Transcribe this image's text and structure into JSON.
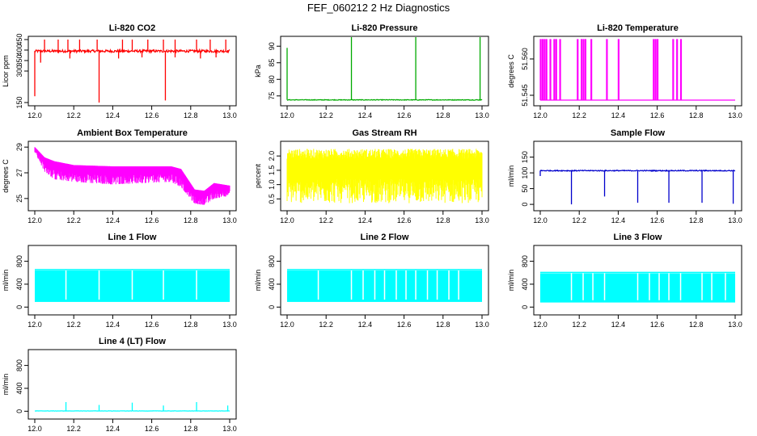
{
  "page_title": "FEF_060212  2 Hz Diagnostics",
  "chart_data": [
    {
      "type": "line",
      "title": "Li-820 CO2",
      "xlabel": "",
      "ylabel": "Licor ppm",
      "color": "#ff0000",
      "xlim": [
        12.0,
        13.0
      ],
      "ylim": [
        150,
        450
      ],
      "x_ticks": [
        "12.0",
        "12.2",
        "12.4",
        "12.6",
        "12.8",
        "13.0"
      ],
      "y_ticks": [
        150,
        300,
        350,
        400,
        450
      ],
      "style": "noisy-line-with-spikes",
      "baseline": 395,
      "noise": 6,
      "downspikes": [
        [
          12.0,
          180
        ],
        [
          12.33,
          150
        ],
        [
          12.67,
          160
        ],
        [
          12.03,
          340
        ],
        [
          12.18,
          360
        ],
        [
          12.43,
          360
        ],
        [
          12.55,
          365
        ],
        [
          12.72,
          365
        ],
        [
          12.85,
          360
        ],
        [
          12.93,
          365
        ]
      ],
      "upspikes": [
        [
          12.05,
          450
        ],
        [
          12.12,
          450
        ],
        [
          12.17,
          450
        ],
        [
          12.23,
          450
        ],
        [
          12.32,
          450
        ],
        [
          12.45,
          450
        ],
        [
          12.5,
          450
        ],
        [
          12.58,
          450
        ],
        [
          12.66,
          450
        ],
        [
          12.72,
          450
        ],
        [
          12.83,
          450
        ],
        [
          12.9,
          450
        ],
        [
          12.98,
          450
        ]
      ]
    },
    {
      "type": "line",
      "title": "Li-820 Pressure",
      "xlabel": "",
      "ylabel": "kPa",
      "color": "#00aa00",
      "xlim": [
        12.0,
        13.0
      ],
      "ylim": [
        73.0,
        92.0
      ],
      "x_ticks": [
        "12.0",
        "12.2",
        "12.4",
        "12.6",
        "12.8",
        "13.0"
      ],
      "y_ticks": [
        75,
        80,
        85,
        90
      ],
      "style": "noisy-line-with-spikes",
      "baseline": 73.8,
      "noise": 0.1,
      "downspikes": [],
      "upspikes": [
        [
          12.0,
          89.5
        ],
        [
          12.33,
          93.0
        ],
        [
          12.66,
          93.0
        ],
        [
          12.99,
          93.0
        ]
      ]
    },
    {
      "type": "line",
      "title": "Li-820 Temperature",
      "xlabel": "",
      "ylabel": "degrees C",
      "color": "#ff00ff",
      "xlim": [
        12.0,
        13.0
      ],
      "ylim": [
        51.542,
        51.568
      ],
      "x_ticks": [
        "12.0",
        "12.2",
        "12.4",
        "12.6",
        "12.8",
        "13.0"
      ],
      "y_ticks": [
        "51.545",
        "51.560"
      ],
      "style": "step-bars",
      "baseline": 51.543,
      "high": 51.568,
      "pulses": [
        12.0,
        12.01,
        12.02,
        12.03,
        12.05,
        12.07,
        12.08,
        12.1,
        12.19,
        12.21,
        12.22,
        12.23,
        12.26,
        12.34,
        12.4,
        12.58,
        12.59,
        12.6,
        12.68,
        12.7,
        12.72
      ]
    },
    {
      "type": "line",
      "title": "Ambient Box Temperature",
      "xlabel": "",
      "ylabel": "degrees C",
      "color": "#ff00ff",
      "xlim": [
        12.0,
        13.0
      ],
      "ylim": [
        24.3,
        29.2
      ],
      "x_ticks": [
        "12.0",
        "12.2",
        "12.4",
        "12.6",
        "12.8",
        "13.0"
      ],
      "y_ticks": [
        25,
        27,
        29
      ],
      "style": "noisy-band",
      "upper": [
        [
          12.0,
          29.0
        ],
        [
          12.05,
          28.2
        ],
        [
          12.1,
          27.9
        ],
        [
          12.2,
          27.6
        ],
        [
          12.4,
          27.5
        ],
        [
          12.7,
          27.5
        ],
        [
          12.75,
          27.3
        ],
        [
          12.82,
          25.7
        ],
        [
          12.87,
          25.6
        ],
        [
          12.92,
          26.2
        ],
        [
          13.0,
          26.0
        ]
      ],
      "lower": [
        [
          12.0,
          28.6
        ],
        [
          12.05,
          27.1
        ],
        [
          12.1,
          26.5
        ],
        [
          12.2,
          26.3
        ],
        [
          12.4,
          26.1
        ],
        [
          12.7,
          26.3
        ],
        [
          12.75,
          25.9
        ],
        [
          12.82,
          24.6
        ],
        [
          12.87,
          24.5
        ],
        [
          12.92,
          25.0
        ],
        [
          13.0,
          25.2
        ]
      ],
      "dips": [
        12.13,
        12.25,
        12.38,
        12.5,
        12.58,
        12.78,
        12.88
      ]
    },
    {
      "type": "line",
      "title": "Gas Stream RH",
      "xlabel": "",
      "ylabel": "percent",
      "color": "#ffff00",
      "xlim": [
        12.0,
        13.0
      ],
      "ylim": [
        0.2,
        2.4
      ],
      "x_ticks": [
        "12.0",
        "12.2",
        "12.4",
        "12.6",
        "12.8",
        "13.0"
      ],
      "y_ticks": [
        "0.5",
        "1.0",
        "1.5",
        "2.0"
      ],
      "style": "dense-fill",
      "band_top": 2.25,
      "band_bottom": 0.35,
      "core_top": 1.9,
      "core_bottom": 1.2
    },
    {
      "type": "line",
      "title": "Sample Flow",
      "xlabel": "",
      "ylabel": "ml/min",
      "color": "#0000cc",
      "xlim": [
        12.0,
        13.0
      ],
      "ylim": [
        -10,
        190
      ],
      "x_ticks": [
        "12.0",
        "12.2",
        "12.4",
        "12.6",
        "12.8",
        "13.0"
      ],
      "y_ticks": [
        0,
        50,
        100,
        150
      ],
      "style": "noisy-line-with-spikes",
      "baseline": 107,
      "noise": 1.5,
      "downspikes": [
        [
          12.16,
          0
        ],
        [
          12.33,
          25
        ],
        [
          12.5,
          5
        ],
        [
          12.66,
          5
        ],
        [
          12.83,
          5
        ],
        [
          12.99,
          2
        ],
        [
          12.0,
          90
        ]
      ],
      "upspikes": []
    },
    {
      "type": "line",
      "title": "Line 1 Flow",
      "xlabel": "",
      "ylabel": "ml/min",
      "color": "#00ffff",
      "xlim": [
        12.0,
        13.0
      ],
      "ylim": [
        -80,
        1020
      ],
      "x_ticks": [
        "12.0",
        "12.2",
        "12.4",
        "12.6",
        "12.8",
        "13.0"
      ],
      "y_ticks": [
        0,
        400,
        800
      ],
      "style": "block",
      "top": 640,
      "bottom": 90,
      "gaps": [
        12.16,
        12.33,
        12.5,
        12.66,
        12.83
      ]
    },
    {
      "type": "line",
      "title": "Line 2 Flow",
      "xlabel": "",
      "ylabel": "ml/min",
      "color": "#00ffff",
      "xlim": [
        12.0,
        13.0
      ],
      "ylim": [
        -80,
        1020
      ],
      "x_ticks": [
        "12.0",
        "12.2",
        "12.4",
        "12.6",
        "12.8",
        "13.0"
      ],
      "y_ticks": [
        0,
        400,
        800
      ],
      "style": "block",
      "top": 640,
      "bottom": 90,
      "gaps": [
        12.16,
        12.33,
        12.39,
        12.45,
        12.5,
        12.56,
        12.61,
        12.66,
        12.72,
        12.77,
        12.83,
        12.88
      ]
    },
    {
      "type": "line",
      "title": "Line 3 Flow",
      "xlabel": "",
      "ylabel": "ml/min",
      "color": "#00ffff",
      "xlim": [
        12.0,
        13.0
      ],
      "ylim": [
        -80,
        1020
      ],
      "x_ticks": [
        "12.0",
        "12.2",
        "12.4",
        "12.6",
        "12.8",
        "13.0"
      ],
      "y_ticks": [
        0,
        400,
        800
      ],
      "style": "block",
      "top": 590,
      "bottom": 80,
      "gaps": [
        12.16,
        12.22,
        12.27,
        12.33,
        12.5,
        12.56,
        12.61,
        12.66,
        12.72,
        12.83,
        12.88,
        12.95
      ]
    },
    {
      "type": "line",
      "title": "Line 4 (LT) Flow",
      "xlabel": "",
      "ylabel": "ml/min",
      "color": "#00ffff",
      "xlim": [
        12.0,
        13.0
      ],
      "ylim": [
        -80,
        1020
      ],
      "x_ticks": [
        "12.0",
        "12.2",
        "12.4",
        "12.6",
        "12.8",
        "13.0"
      ],
      "y_ticks": [
        0,
        400,
        800
      ],
      "style": "noisy-line-with-spikes",
      "baseline": 5,
      "noise": 2,
      "downspikes": [],
      "upspikes": [
        [
          12.16,
          160
        ],
        [
          12.33,
          110
        ],
        [
          12.5,
          150
        ],
        [
          12.66,
          100
        ],
        [
          12.83,
          160
        ],
        [
          12.99,
          100
        ]
      ]
    }
  ]
}
